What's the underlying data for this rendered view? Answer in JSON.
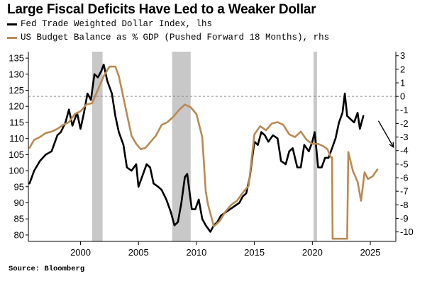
{
  "chart_data": {
    "type": "line",
    "title": "Large Fiscal Deficits Have Led to a Weaker Dollar",
    "source": "Source: Bloomberg",
    "x_axis": {
      "ticks": [
        "2000",
        "2005",
        "2010",
        "2015",
        "2020",
        "2025"
      ],
      "range": [
        1995.5,
        2027.2
      ]
    },
    "y_left": {
      "label": "lhs",
      "range": [
        78,
        137
      ],
      "ticks": [
        "135",
        "130",
        "125",
        "120",
        "115",
        "110",
        "105",
        "100",
        "95",
        "90",
        "85",
        "80"
      ]
    },
    "y_right": {
      "label": "rhs",
      "range": [
        -10.7,
        3.3
      ],
      "ticks": [
        "3",
        "2",
        "1",
        "0",
        "-1",
        "-2",
        "-3",
        "-4",
        "-5",
        "-6",
        "-7",
        "-8",
        "-9",
        "-10"
      ]
    },
    "recessions": [
      [
        2001.0,
        2001.9
      ],
      [
        2007.9,
        2009.5
      ],
      [
        2020.1,
        2020.4
      ]
    ],
    "zero_line_right": 0,
    "annotation": "arrow pointing down-right",
    "series": [
      {
        "name": "Fed Trade Weighted Dollar Index, lhs",
        "axis": "left",
        "color": "#000000",
        "x": [
          1995.6,
          1996.0,
          1996.5,
          1997.0,
          1997.5,
          1998.0,
          1998.3,
          1998.7,
          1999.0,
          1999.3,
          1999.7,
          2000.0,
          2000.3,
          2000.6,
          2000.9,
          2001.2,
          2001.5,
          2001.8,
          2002.0,
          2002.3,
          2002.7,
          2003.0,
          2003.3,
          2003.7,
          2004.0,
          2004.4,
          2004.8,
          2005.0,
          2005.4,
          2005.7,
          2006.0,
          2006.3,
          2006.7,
          2007.0,
          2007.4,
          2007.8,
          2008.1,
          2008.4,
          2008.7,
          2009.0,
          2009.2,
          2009.6,
          2009.9,
          2010.2,
          2010.5,
          2010.8,
          2011.2,
          2011.5,
          2011.8,
          2012.1,
          2012.5,
          2012.9,
          2013.3,
          2013.7,
          2014.0,
          2014.3,
          2014.6,
          2015.0,
          2015.3,
          2015.6,
          2015.9,
          2016.2,
          2016.6,
          2017.0,
          2017.3,
          2017.7,
          2018.0,
          2018.3,
          2018.7,
          2019.0,
          2019.3,
          2019.7,
          2020.0,
          2020.2,
          2020.5,
          2020.8,
          2021.1,
          2021.4,
          2021.7,
          2022.0,
          2022.3,
          2022.6,
          2022.8,
          2023.0,
          2023.3,
          2023.6,
          2023.9,
          2024.1,
          2024.4
        ],
        "values": [
          96,
          100,
          103,
          105,
          106,
          111,
          112,
          115,
          119,
          114,
          118,
          113,
          118,
          124,
          122,
          130,
          129,
          131,
          133,
          128,
          124,
          117,
          112,
          108,
          101,
          100,
          102,
          95,
          99,
          102,
          101,
          96,
          95,
          94,
          91,
          87,
          83,
          84,
          90,
          98,
          99,
          88,
          88,
          91,
          85,
          83,
          81,
          83,
          84,
          86,
          87,
          88,
          89,
          90,
          92,
          93,
          98,
          109,
          108,
          112,
          111,
          109,
          111,
          110,
          103,
          102,
          106,
          107,
          101,
          101,
          108,
          106,
          109,
          112,
          101,
          101,
          104,
          104,
          107,
          110,
          115,
          118,
          124,
          117,
          116,
          115,
          118,
          113,
          117
        ]
      },
      {
        "name": "US Budget Balance as % GDP (Pushed Forward 18 Months), rhs",
        "axis": "right",
        "color": "#b98a53",
        "x": [
          1995.6,
          1996.0,
          1996.5,
          1997.0,
          1997.5,
          1998.0,
          1998.5,
          1999.0,
          1999.5,
          2000.0,
          2000.5,
          2001.0,
          2001.5,
          2002.0,
          2002.5,
          2003.0,
          2003.3,
          2003.6,
          2004.0,
          2004.4,
          2004.8,
          2005.2,
          2005.6,
          2006.0,
          2006.5,
          2007.0,
          2007.5,
          2008.0,
          2008.5,
          2009.0,
          2009.5,
          2010.0,
          2010.5,
          2010.8,
          2011.0,
          2011.5,
          2012.0,
          2012.5,
          2013.0,
          2013.5,
          2014.0,
          2014.5,
          2015.0,
          2015.5,
          2016.0,
          2016.5,
          2017.0,
          2017.5,
          2018.0,
          2018.5,
          2019.0,
          2019.5,
          2020.0,
          2020.5,
          2021.0,
          2021.3,
          2021.6,
          2021.7,
          2021.75,
          2023.0,
          2023.1,
          2023.5,
          2023.9,
          2024.2,
          2024.5,
          2024.8,
          2025.2,
          2025.6
        ],
        "values": [
          -3.8,
          -3.2,
          -3.0,
          -2.7,
          -2.6,
          -2.4,
          -2.1,
          -1.9,
          -1.3,
          -1.1,
          -0.6,
          -0.5,
          0.5,
          1.5,
          2.2,
          2.2,
          1.5,
          0.3,
          -1.3,
          -2.9,
          -3.5,
          -3.9,
          -3.8,
          -3.4,
          -2.9,
          -2.1,
          -1.9,
          -1.5,
          -1.0,
          -0.6,
          -0.8,
          -1.3,
          -3.0,
          -7.0,
          -8.0,
          -9.6,
          -9.2,
          -8.5,
          -8.0,
          -7.7,
          -7.1,
          -6.6,
          -2.8,
          -2.2,
          -2.5,
          -2.0,
          -1.9,
          -2.1,
          -2.8,
          -3.0,
          -2.6,
          -3.2,
          -3.5,
          -3.5,
          -3.7,
          -3.9,
          -4.5,
          -4.5,
          -10.5,
          -10.5,
          -4.1,
          -5.5,
          -6.3,
          -7.7,
          -5.6,
          -6.1,
          -5.9,
          -5.4
        ]
      }
    ]
  }
}
